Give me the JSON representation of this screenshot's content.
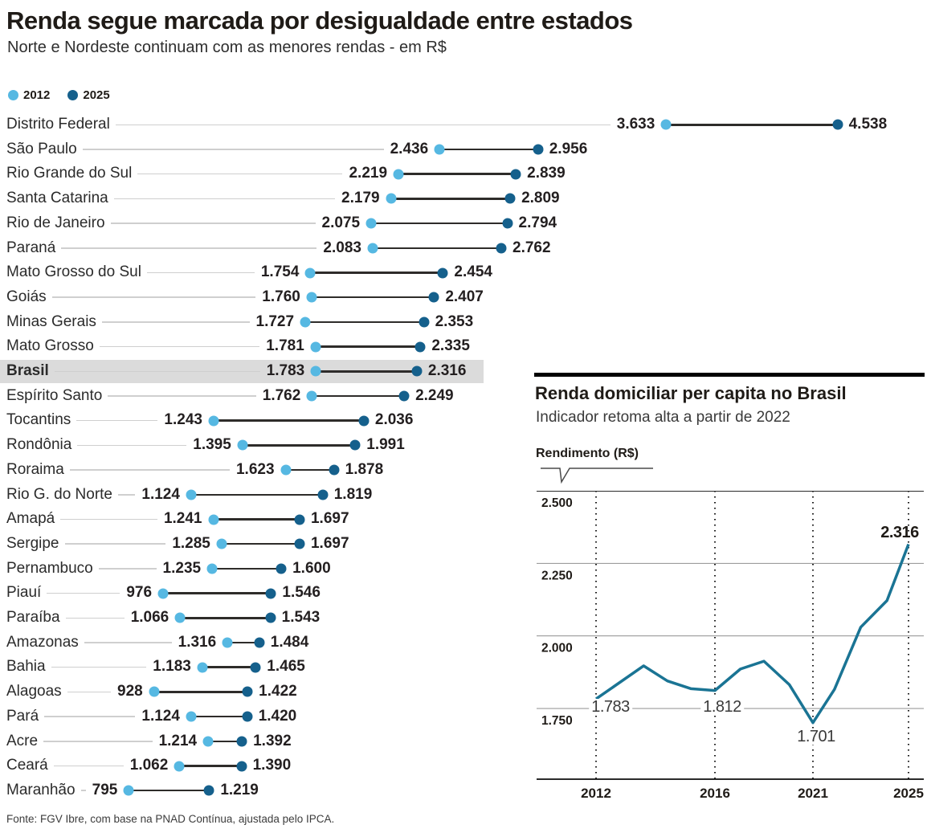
{
  "header": {
    "title": "Renda segue marcada por desigualdade entre estados",
    "subtitle": "Norte e Nordeste continuam com as menores rendas - em R$"
  },
  "colors": {
    "dot_2012": "#56b8e2",
    "dot_2025": "#15608c",
    "connector": "#2e2c2a",
    "leader": "#cfcfcf",
    "highlight_band": "#dbdbdb",
    "inset_line": "#1a7494",
    "gridline": "#8f8f8f",
    "axis_dark": "#2b2b2b"
  },
  "legend": [
    {
      "label": "2012",
      "color": "#56b8e2"
    },
    {
      "label": "2025",
      "color": "#15608c"
    }
  ],
  "chart_data": [
    {
      "type": "dumbbell",
      "title": "Renda segue marcada por desigualdade entre estados",
      "series": [
        "2012",
        "2025"
      ],
      "unit": "R$",
      "rows": [
        {
          "label": "Distrito Federal",
          "v2012": 3633,
          "v2025": 4538,
          "d2012": "3.633",
          "d2025": "4.538",
          "highlight": false
        },
        {
          "label": "São Paulo",
          "v2012": 2436,
          "v2025": 2956,
          "d2012": "2.436",
          "d2025": "2.956",
          "highlight": false
        },
        {
          "label": "Rio Grande do Sul",
          "v2012": 2219,
          "v2025": 2839,
          "d2012": "2.219",
          "d2025": "2.839",
          "highlight": false
        },
        {
          "label": "Santa Catarina",
          "v2012": 2179,
          "v2025": 2809,
          "d2012": "2.179",
          "d2025": "2.809",
          "highlight": false
        },
        {
          "label": "Rio de Janeiro",
          "v2012": 2075,
          "v2025": 2794,
          "d2012": "2.075",
          "d2025": "2.794",
          "highlight": false
        },
        {
          "label": "Paraná",
          "v2012": 2083,
          "v2025": 2762,
          "d2012": "2.083",
          "d2025": "2.762",
          "highlight": false
        },
        {
          "label": "Mato Grosso do Sul",
          "v2012": 1754,
          "v2025": 2454,
          "d2012": "1.754",
          "d2025": "2.454",
          "highlight": false
        },
        {
          "label": "Goiás",
          "v2012": 1760,
          "v2025": 2407,
          "d2012": "1.760",
          "d2025": "2.407",
          "highlight": false
        },
        {
          "label": "Minas Gerais",
          "v2012": 1727,
          "v2025": 2353,
          "d2012": "1.727",
          "d2025": "2.353",
          "highlight": false
        },
        {
          "label": "Mato Grosso",
          "v2012": 1781,
          "v2025": 2335,
          "d2012": "1.781",
          "d2025": "2.335",
          "highlight": false
        },
        {
          "label": "Brasil",
          "v2012": 1783,
          "v2025": 2316,
          "d2012": "1.783",
          "d2025": "2.316",
          "highlight": true
        },
        {
          "label": "Espírito Santo",
          "v2012": 1762,
          "v2025": 2249,
          "d2012": "1.762",
          "d2025": "2.249",
          "highlight": false
        },
        {
          "label": "Tocantins",
          "v2012": 1243,
          "v2025": 2036,
          "d2012": "1.243",
          "d2025": "2.036",
          "highlight": false
        },
        {
          "label": "Rondônia",
          "v2012": 1395,
          "v2025": 1991,
          "d2012": "1.395",
          "d2025": "1.991",
          "highlight": false
        },
        {
          "label": "Roraima",
          "v2012": 1623,
          "v2025": 1878,
          "d2012": "1.623",
          "d2025": "1.878",
          "highlight": false
        },
        {
          "label": "Rio G. do Norte",
          "v2012": 1124,
          "v2025": 1819,
          "d2012": "1.124",
          "d2025": "1.819",
          "highlight": false
        },
        {
          "label": "Amapá",
          "v2012": 1241,
          "v2025": 1697,
          "d2012": "1.241",
          "d2025": "1.697",
          "highlight": false
        },
        {
          "label": "Sergipe",
          "v2012": 1285,
          "v2025": 1697,
          "d2012": "1.285",
          "d2025": "1.697",
          "highlight": false
        },
        {
          "label": "Pernambuco",
          "v2012": 1235,
          "v2025": 1600,
          "d2012": "1.235",
          "d2025": "1.600",
          "highlight": false
        },
        {
          "label": "Piauí",
          "v2012": 976,
          "v2025": 1546,
          "d2012": "976",
          "d2025": "1.546",
          "highlight": false
        },
        {
          "label": "Paraíba",
          "v2012": 1066,
          "v2025": 1543,
          "d2012": "1.066",
          "d2025": "1.543",
          "highlight": false
        },
        {
          "label": "Amazonas",
          "v2012": 1316,
          "v2025": 1484,
          "d2012": "1.316",
          "d2025": "1.484",
          "highlight": false
        },
        {
          "label": "Bahia",
          "v2012": 1183,
          "v2025": 1465,
          "d2012": "1.183",
          "d2025": "1.465",
          "highlight": false
        },
        {
          "label": "Alagoas",
          "v2012": 928,
          "v2025": 1422,
          "d2012": "928",
          "d2025": "1.422",
          "highlight": false
        },
        {
          "label": "Pará",
          "v2012": 1124,
          "v2025": 1420,
          "d2012": "1.124",
          "d2025": "1.420",
          "highlight": false
        },
        {
          "label": "Acre",
          "v2012": 1214,
          "v2025": 1392,
          "d2012": "1.214",
          "d2025": "1.392",
          "highlight": false
        },
        {
          "label": "Ceará",
          "v2012": 1062,
          "v2025": 1390,
          "d2012": "1.062",
          "d2025": "1.390",
          "highlight": false
        },
        {
          "label": "Maranhão",
          "v2012": 795,
          "v2025": 1219,
          "d2012": "795",
          "d2025": "1.219",
          "highlight": false
        }
      ]
    },
    {
      "type": "line",
      "title": "Renda domiciliar per capita no Brasil",
      "subtitle": "Indicador retoma alta a partir de 2022",
      "ylabel": "Rendimento (R$)",
      "ylim": [
        1507,
        2500
      ],
      "yticks": [
        {
          "value": 2500,
          "label": "2.500"
        },
        {
          "value": 2250,
          "label": "2.250"
        },
        {
          "value": 2000,
          "label": "2.000"
        },
        {
          "value": 1750,
          "label": "1.750"
        }
      ],
      "xticks": [
        {
          "year": 2012,
          "label": "2012"
        },
        {
          "year": 2016,
          "label": "2016"
        },
        {
          "year": 2021,
          "label": "2021"
        },
        {
          "year": 2025,
          "label": "2025"
        }
      ],
      "points": [
        [
          2012.0,
          1783
        ],
        [
          2013.6,
          1897
        ],
        [
          2014.4,
          1845
        ],
        [
          2015.2,
          1818
        ],
        [
          2016.0,
          1812
        ],
        [
          2017.3,
          1886
        ],
        [
          2018.5,
          1913
        ],
        [
          2019.8,
          1832
        ],
        [
          2021.0,
          1701
        ],
        [
          2021.9,
          1816
        ],
        [
          2023.0,
          2030
        ],
        [
          2024.1,
          2122
        ],
        [
          2025.0,
          2316
        ]
      ],
      "annotations": [
        {
          "text": "1.783",
          "x": 92,
          "y": 259,
          "bg": true,
          "bold": false
        },
        {
          "text": "1.812",
          "x": 231,
          "y": 259,
          "bg": true,
          "bold": false
        },
        {
          "text": "1.701",
          "x": 348,
          "y": 296,
          "bg": true,
          "bold": false
        },
        {
          "text": "2.316",
          "x": 452,
          "y": 42,
          "bg": false,
          "bold": true
        }
      ]
    }
  ],
  "footer": {
    "source": "Fonte: FGV Ibre, com base na PNAD Contínua, ajustada pelo IPCA."
  }
}
